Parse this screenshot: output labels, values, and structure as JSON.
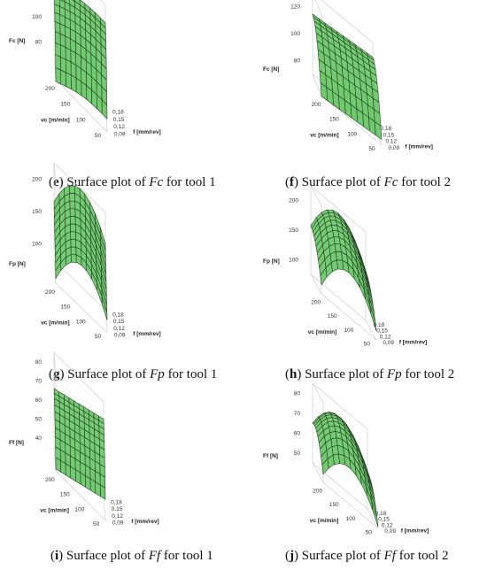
{
  "colors": {
    "surface": "#5cc15a",
    "grid": "#1c3a1c",
    "box": "#c8c8c8"
  },
  "panels": [
    {
      "caption": {
        "label": "e",
        "pre": " Surface plot of ",
        "sym": "Fc",
        "post": " for tool 1"
      }
    },
    {
      "caption": {
        "label": "f",
        "pre": " Surface plot of ",
        "sym": "Fc",
        "post": " for tool 2"
      }
    },
    {
      "caption": {
        "label": "g",
        "pre": " Surface plot of ",
        "sym": "Fp",
        "post": " for tool 1"
      }
    },
    {
      "caption": {
        "label": "h",
        "pre": " Surface plot of ",
        "sym": "Fp",
        "post": " for tool 2"
      }
    },
    {
      "caption": {
        "label": "i",
        "pre": " Surface plot of ",
        "sym": "Ff",
        "post": " for tool 1"
      }
    },
    {
      "caption": {
        "label": "j",
        "pre": " Surface plot of ",
        "sym": "Ff",
        "post": " for tool 2"
      }
    }
  ],
  "chart_data": [
    {
      "type": "surface",
      "zlabel": "Fc [N]",
      "xlabel": "vc [m/min]",
      "ylabel": "f [mm/rev]",
      "x_ticks": [
        "200",
        "150",
        "100",
        "50"
      ],
      "y_ticks": [
        "0,09",
        "0,12",
        "0,15",
        "0,18"
      ],
      "z_ticks": [
        "80",
        "100",
        "120",
        "140"
      ],
      "xlim": [
        40,
        210
      ],
      "ylim": [
        0.07,
        0.19
      ],
      "zlim": [
        65,
        145
      ],
      "vc_grid": [
        200,
        180,
        160,
        140,
        120,
        100,
        80,
        60,
        50
      ],
      "f_grid": [
        0.07,
        0.085,
        0.1,
        0.115,
        0.13,
        0.145,
        0.16,
        0.175,
        0.19
      ],
      "corner_values": {
        "vc200_f0.07": 73,
        "vc50_f0.07": 85,
        "vc200_f0.19": 128,
        "vc50_f0.19": 142
      }
    },
    {
      "type": "surface",
      "zlabel": "Fc [N]",
      "xlabel": "vc [m/min]",
      "ylabel": "f [mm/rev]",
      "x_ticks": [
        "200",
        "150",
        "100",
        "50"
      ],
      "y_ticks": [
        "0,09",
        "0,12",
        "0,15",
        "0,18"
      ],
      "z_ticks": [
        "80",
        "100",
        "120"
      ],
      "xlim": [
        40,
        210
      ],
      "ylim": [
        0.07,
        0.19
      ],
      "zlim": [
        65,
        135
      ],
      "corner_values": {
        "vc200_f0.07": 75,
        "vc50_f0.07": 82,
        "vc200_f0.19": 125,
        "vc50_f0.19": 132
      }
    },
    {
      "type": "surface",
      "zlabel": "Fp [N]",
      "xlabel": "vc [m/min]",
      "ylabel": "f [mm/rev]",
      "x_ticks": [
        "200",
        "150",
        "100",
        "50"
      ],
      "y_ticks": [
        "0,09",
        "0,12",
        "0,15",
        "0,18"
      ],
      "z_ticks": [
        "100",
        "150",
        "200"
      ],
      "xlim": [
        40,
        210
      ],
      "ylim": [
        0.07,
        0.19
      ],
      "zlim": [
        95,
        235
      ],
      "corner_values": {
        "vc200_f0.07": 110,
        "vc50_f0.07": 105,
        "vc200_f0.19": 190,
        "vc50_f0.19": 205
      }
    },
    {
      "type": "surface",
      "zlabel": "Fp [N]",
      "xlabel": "vc [m/min]",
      "ylabel": "f [mm/rev]",
      "x_ticks": [
        "200",
        "150",
        "100",
        "50"
      ],
      "y_ticks": [
        "0,09",
        "0,12",
        "0,15",
        "0,18"
      ],
      "z_ticks": [
        "100",
        "150",
        "200"
      ],
      "xlim": [
        40,
        210
      ],
      "ylim": [
        0.07,
        0.19
      ],
      "zlim": [
        95,
        225
      ],
      "corner_values": {
        "vc200_f0.07": 130,
        "vc50_f0.07": 125,
        "vc200_f0.19": 185,
        "vc50_f0.19": 180
      }
    },
    {
      "type": "surface",
      "zlabel": "Ff [N]",
      "xlabel": "vc [m/min]",
      "ylabel": "f [mm/rev]",
      "x_ticks": [
        "200",
        "150",
        "100",
        "50"
      ],
      "y_ticks": [
        "0,09",
        "0,12",
        "0,15",
        "0,18"
      ],
      "z_ticks": [
        "40",
        "50",
        "60",
        "70",
        "80"
      ],
      "xlim": [
        40,
        210
      ],
      "ylim": [
        0.07,
        0.19
      ],
      "zlim": [
        35,
        88
      ],
      "corner_values": {
        "vc200_f0.07": 48,
        "vc50_f0.07": 55,
        "vc200_f0.19": 75,
        "vc50_f0.19": 85
      }
    },
    {
      "type": "surface",
      "zlabel": "Ff [N]",
      "xlabel": "vc [m/min]",
      "ylabel": "f [mm/rev]",
      "x_ticks": [
        "200",
        "150",
        "100",
        "50"
      ],
      "y_ticks": [
        "0,09",
        "0,12",
        "0,15",
        "0,18"
      ],
      "z_ticks": [
        "50",
        "60",
        "70",
        "80"
      ],
      "xlim": [
        40,
        210
      ],
      "ylim": [
        0.07,
        0.19
      ],
      "zlim": [
        42,
        88
      ],
      "corner_values": {
        "vc200_f0.07": 62,
        "vc50_f0.07": 58,
        "vc200_f0.19": 80,
        "vc50_f0.19": 76
      }
    }
  ]
}
